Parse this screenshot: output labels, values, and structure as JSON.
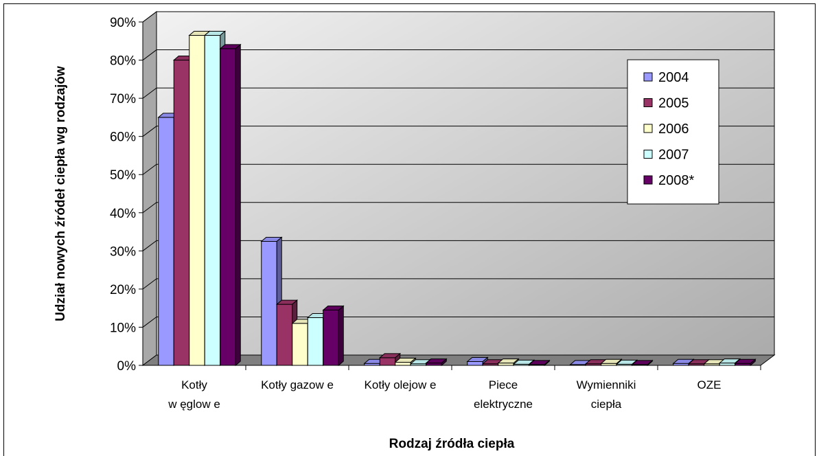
{
  "chart_data": {
    "type": "bar",
    "three_d": true,
    "title": "",
    "xlabel": "Rodzaj źródła ciepła",
    "ylabel": "Udział nowych źródeł ciepła wg rodzajów",
    "ylim": [
      0,
      0.9
    ],
    "yticks": [
      "0%",
      "10%",
      "20%",
      "30%",
      "40%",
      "50%",
      "60%",
      "70%",
      "80%",
      "90%"
    ],
    "grid": true,
    "legend_position": "right",
    "categories": [
      [
        "Kotły",
        "w ęglow e"
      ],
      [
        "Kotły gazow e"
      ],
      [
        "Kotły olejow e"
      ],
      [
        "Piece",
        "elektryczne"
      ],
      [
        "Wymienniki",
        "ciepła"
      ],
      [
        "OZE"
      ]
    ],
    "series": [
      {
        "name": "2004",
        "color": "#9999ff",
        "values": [
          0.65,
          0.325,
          0.005,
          0.01,
          0.002,
          0.005
        ]
      },
      {
        "name": "2005",
        "color": "#993366",
        "values": [
          0.8,
          0.16,
          0.02,
          0.004,
          0.004,
          0.004
        ]
      },
      {
        "name": "2006",
        "color": "#ffffcc",
        "values": [
          0.865,
          0.11,
          0.008,
          0.006,
          0.005,
          0.004
        ]
      },
      {
        "name": "2007",
        "color": "#ccffff",
        "values": [
          0.865,
          0.125,
          0.004,
          0.003,
          0.003,
          0.006
        ]
      },
      {
        "name": "2008*",
        "color": "#660066",
        "values": [
          0.83,
          0.145,
          0.006,
          0.002,
          0.002,
          0.005
        ]
      }
    ]
  }
}
